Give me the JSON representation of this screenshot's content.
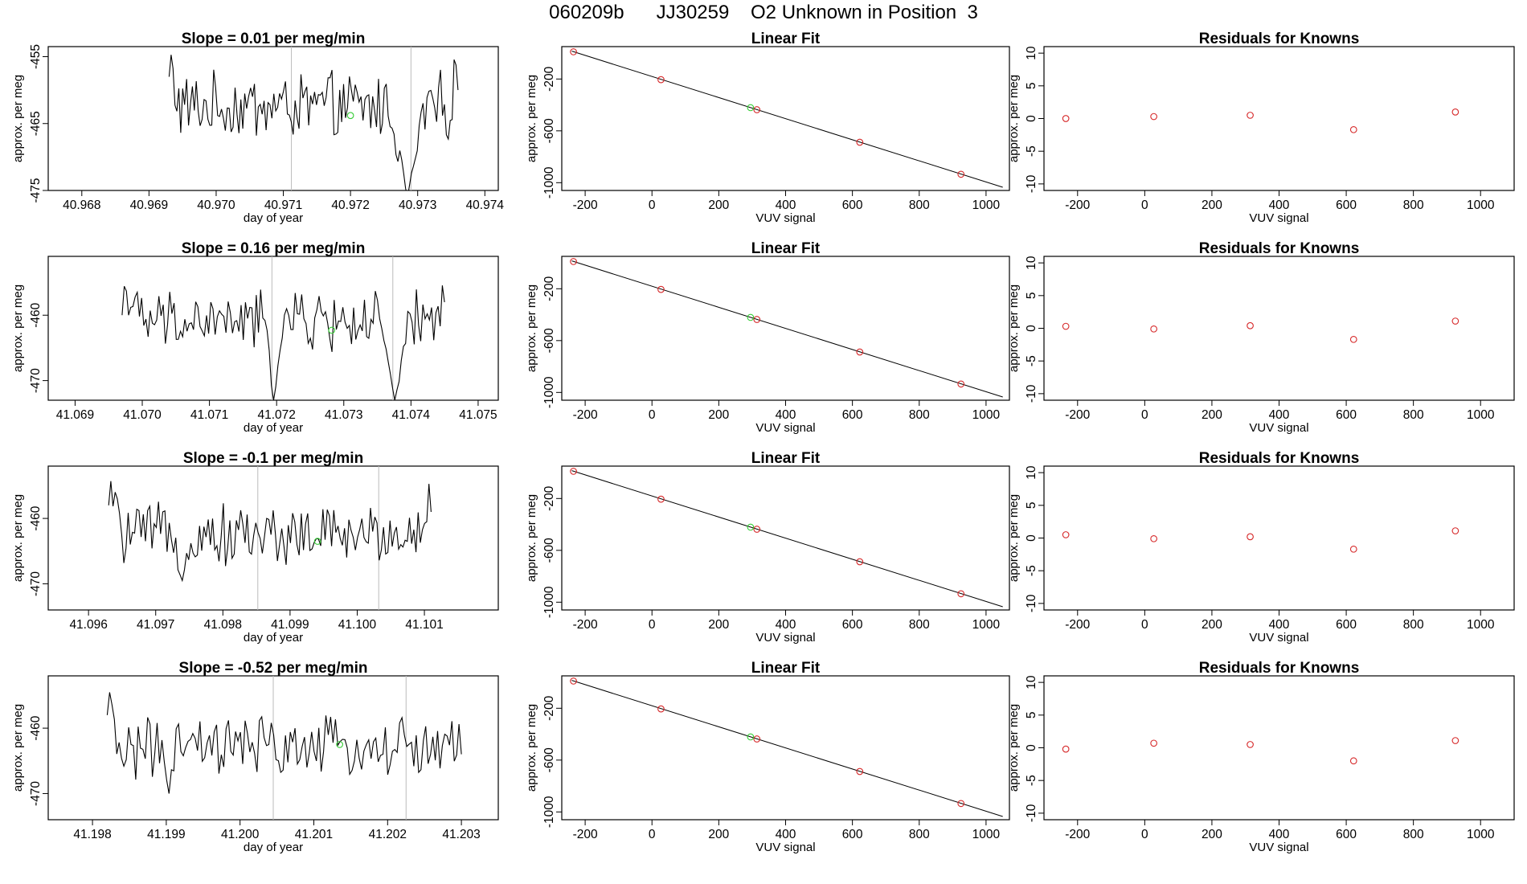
{
  "page_title": "060209b      JJ30259    O2 Unknown in Position  3",
  "colors": {
    "trace": "#000000",
    "known_point": "#d62728",
    "unknown_point": "#33cc33",
    "vline": "#bbbbbb"
  },
  "chart_data": [
    {
      "row": 1,
      "type": "line",
      "title": "Slope =  0.01  per meg/min",
      "xlabel": "day of year",
      "ylabel": "approx. per meg",
      "xlim": [
        40.9675,
        40.9742
      ],
      "ylim": [
        -475,
        -453.5
      ],
      "xticks": [
        40.968,
        40.969,
        40.97,
        40.971,
        40.972,
        40.973,
        40.974
      ],
      "xtick_labels": [
        "40.968",
        "40.969",
        "40.970",
        "40.971",
        "40.972",
        "40.973",
        "40.974"
      ],
      "yticks": [
        -455,
        -465,
        -475
      ],
      "ytick_labels": [
        "-455",
        "-465",
        "-475"
      ],
      "trace_start": 40.9693,
      "trace_end": 40.9736,
      "trace_n": 150,
      "trace_mean": -462.5,
      "trace_amp": 2.6,
      "start_level": -452,
      "end_level": -452,
      "start_len": 6,
      "end_len": 5,
      "dips": [
        {
          "x": 40.97285,
          "y": -476,
          "w": 8
        }
      ],
      "vlines": [
        40.97112,
        40.9729
      ],
      "unknown_point": {
        "x": 40.972,
        "y": -463.8
      }
    },
    {
      "row": 2,
      "type": "line",
      "title": "Slope =  0.16  per meg/min",
      "xlabel": "day of year",
      "ylabel": "approx. per meg",
      "xlim": [
        41.0686,
        41.0753
      ],
      "ylim": [
        -473,
        -451
      ],
      "xticks": [
        41.069,
        41.07,
        41.071,
        41.072,
        41.073,
        41.074,
        41.075
      ],
      "xtick_labels": [
        "41.069",
        "41.070",
        "41.071",
        "41.072",
        "41.073",
        "41.074",
        "41.075"
      ],
      "yticks": [
        -460,
        -470
      ],
      "ytick_labels": [
        "-460",
        "-470"
      ],
      "trace_start": 41.0697,
      "trace_end": 41.0745,
      "trace_n": 150,
      "trace_mean": -461,
      "trace_amp": 2.4,
      "start_level": -454,
      "end_level": -450,
      "start_len": 10,
      "end_len": 4,
      "dips": [
        {
          "x": 41.07195,
          "y": -473,
          "w": 3
        },
        {
          "x": 41.07375,
          "y": -473,
          "w": 6
        }
      ],
      "vlines": [
        41.07193,
        41.07373
      ],
      "unknown_point": {
        "x": 41.07282,
        "y": -462.3
      }
    },
    {
      "row": 3,
      "type": "line",
      "title": "Slope =  -0.1  per meg/min",
      "xlabel": "day of year",
      "ylabel": "approx. per meg",
      "xlim": [
        41.0954,
        41.1021
      ],
      "ylim": [
        -474,
        -452
      ],
      "xticks": [
        41.096,
        41.097,
        41.098,
        41.099,
        41.1,
        41.101
      ],
      "xtick_labels": [
        "41.096",
        "41.097",
        "41.098",
        "41.099",
        "41.100",
        "41.101"
      ],
      "yticks": [
        -460,
        -470
      ],
      "ytick_labels": [
        "-460",
        "-470"
      ],
      "trace_start": 41.0963,
      "trace_end": 41.1011,
      "trace_n": 150,
      "trace_mean": -462.5,
      "trace_amp": 2.4,
      "start_level": -452,
      "end_level": -451,
      "start_len": 8,
      "end_len": 5,
      "dips": [
        {
          "x": 41.09738,
          "y": -469.5,
          "w": 2
        }
      ],
      "vlines": [
        41.09852,
        41.10032
      ],
      "unknown_point": {
        "x": 41.09941,
        "y": -463.5
      }
    },
    {
      "row": 4,
      "type": "line",
      "title": "Slope =  -0.52  per meg/min",
      "xlabel": "day of year",
      "ylabel": "approx. per meg",
      "xlim": [
        41.1974,
        41.2035
      ],
      "ylim": [
        -474,
        -452
      ],
      "xticks": [
        41.198,
        41.199,
        41.2,
        41.201,
        41.202,
        41.203
      ],
      "xtick_labels": [
        "41.198",
        "41.199",
        "41.200",
        "41.201",
        "41.202",
        "41.203"
      ],
      "yticks": [
        -460,
        -470
      ],
      "ytick_labels": [
        "-460",
        "-470"
      ],
      "trace_start": 41.1982,
      "trace_end": 41.203,
      "trace_n": 150,
      "trace_mean": -463,
      "trace_amp": 2.4,
      "start_level": -452,
      "end_level": -456,
      "start_len": 6,
      "end_len": 3,
      "dips": [
        {
          "x": 41.19905,
          "y": -470,
          "w": 2
        }
      ],
      "vlines": [
        41.20045,
        41.20225
      ],
      "unknown_point": {
        "x": 41.20135,
        "y": -462.5
      }
    }
  ],
  "fit_panels": [
    {
      "title": "Linear Fit",
      "xlabel": "VUV signal",
      "ylabel": "approx. per meg",
      "xlim": [
        -270,
        1070
      ],
      "ylim": [
        -1060,
        50
      ],
      "xticks": [
        -200,
        0,
        200,
        400,
        600,
        800,
        1000
      ],
      "xtick_labels": [
        "-200",
        "0",
        "200",
        "400",
        "600",
        "800",
        "1000"
      ],
      "yticks": [
        -200,
        -600,
        -1000
      ],
      "ytick_labels": [
        "-200",
        "-600",
        "-1000"
      ],
      "line": [
        [
          -240,
          15
        ],
        [
          1050,
          -1035
        ]
      ],
      "known_points": [
        {
          "x": -235,
          "y": 10
        },
        {
          "x": 27,
          "y": -205
        },
        {
          "x": 314,
          "y": -437
        },
        {
          "x": 622,
          "y": -688
        },
        {
          "x": 925,
          "y": -935
        }
      ],
      "unknown_point": {
        "x": 295,
        "y": -421
      }
    },
    {
      "title": "Linear Fit",
      "xlabel": "VUV signal",
      "ylabel": "approx. per meg",
      "xlim": [
        -270,
        1070
      ],
      "ylim": [
        -1060,
        50
      ],
      "xticks": [
        -200,
        0,
        200,
        400,
        600,
        800,
        1000
      ],
      "xtick_labels": [
        "-200",
        "0",
        "200",
        "400",
        "600",
        "800",
        "1000"
      ],
      "yticks": [
        -200,
        -600,
        -1000
      ],
      "ytick_labels": [
        "-200",
        "-600",
        "-1000"
      ],
      "line": [
        [
          -240,
          15
        ],
        [
          1050,
          -1035
        ]
      ],
      "known_points": [
        {
          "x": -235,
          "y": 10
        },
        {
          "x": 27,
          "y": -205
        },
        {
          "x": 314,
          "y": -437
        },
        {
          "x": 622,
          "y": -688
        },
        {
          "x": 925,
          "y": -935
        }
      ],
      "unknown_point": {
        "x": 295,
        "y": -421
      }
    },
    {
      "title": "Linear Fit",
      "xlabel": "VUV signal",
      "ylabel": "approx. per meg",
      "xlim": [
        -270,
        1070
      ],
      "ylim": [
        -1060,
        50
      ],
      "xticks": [
        -200,
        0,
        200,
        400,
        600,
        800,
        1000
      ],
      "xtick_labels": [
        "-200",
        "0",
        "200",
        "400",
        "600",
        "800",
        "1000"
      ],
      "yticks": [
        -200,
        -600,
        -1000
      ],
      "ytick_labels": [
        "-200",
        "-600",
        "-1000"
      ],
      "line": [
        [
          -240,
          15
        ],
        [
          1050,
          -1035
        ]
      ],
      "known_points": [
        {
          "x": -235,
          "y": 10
        },
        {
          "x": 27,
          "y": -205
        },
        {
          "x": 314,
          "y": -437
        },
        {
          "x": 622,
          "y": -688
        },
        {
          "x": 925,
          "y": -935
        }
      ],
      "unknown_point": {
        "x": 295,
        "y": -421
      }
    },
    {
      "title": "Linear Fit",
      "xlabel": "VUV signal",
      "ylabel": "approx. per meg",
      "xlim": [
        -270,
        1070
      ],
      "ylim": [
        -1060,
        50
      ],
      "xticks": [
        -200,
        0,
        200,
        400,
        600,
        800,
        1000
      ],
      "xtick_labels": [
        "-200",
        "0",
        "200",
        "400",
        "600",
        "800",
        "1000"
      ],
      "yticks": [
        -200,
        -600,
        -1000
      ],
      "ytick_labels": [
        "-200",
        "-600",
        "-1000"
      ],
      "line": [
        [
          -240,
          15
        ],
        [
          1050,
          -1035
        ]
      ],
      "known_points": [
        {
          "x": -235,
          "y": 10
        },
        {
          "x": 27,
          "y": -205
        },
        {
          "x": 314,
          "y": -437
        },
        {
          "x": 622,
          "y": -688
        },
        {
          "x": 925,
          "y": -935
        }
      ],
      "unknown_point": {
        "x": 295,
        "y": -421
      }
    }
  ],
  "residual_panels": [
    {
      "title": "Residuals for Knowns",
      "xlabel": "VUV signal",
      "ylabel": "approx. per meg",
      "xlim": [
        -300,
        1100
      ],
      "ylim": [
        -11,
        11
      ],
      "xticks": [
        -200,
        0,
        200,
        400,
        600,
        800,
        1000
      ],
      "xtick_labels": [
        "-200",
        "0",
        "200",
        "400",
        "600",
        "800",
        "1000"
      ],
      "yticks": [
        10,
        5,
        0,
        -5,
        -10
      ],
      "ytick_labels": [
        "10",
        "5",
        "0",
        "-5",
        "-10"
      ],
      "points": [
        {
          "x": -235,
          "y": 0.0
        },
        {
          "x": 27,
          "y": 0.3
        },
        {
          "x": 314,
          "y": 0.5
        },
        {
          "x": 622,
          "y": -1.7
        },
        {
          "x": 925,
          "y": 1.0
        }
      ]
    },
    {
      "title": "Residuals for Knowns",
      "xlabel": "VUV signal",
      "ylabel": "approx. per meg",
      "xlim": [
        -300,
        1100
      ],
      "ylim": [
        -11,
        11
      ],
      "xticks": [
        -200,
        0,
        200,
        400,
        600,
        800,
        1000
      ],
      "xtick_labels": [
        "-200",
        "0",
        "200",
        "400",
        "600",
        "800",
        "1000"
      ],
      "yticks": [
        10,
        5,
        0,
        -5,
        -10
      ],
      "ytick_labels": [
        "10",
        "5",
        "0",
        "-5",
        "-10"
      ],
      "points": [
        {
          "x": -235,
          "y": 0.3
        },
        {
          "x": 27,
          "y": -0.1
        },
        {
          "x": 314,
          "y": 0.4
        },
        {
          "x": 622,
          "y": -1.7
        },
        {
          "x": 925,
          "y": 1.1
        }
      ]
    },
    {
      "title": "Residuals for Knowns",
      "xlabel": "VUV signal",
      "ylabel": "approx. per meg",
      "xlim": [
        -300,
        1100
      ],
      "ylim": [
        -11,
        11
      ],
      "xticks": [
        -200,
        0,
        200,
        400,
        600,
        800,
        1000
      ],
      "xtick_labels": [
        "-200",
        "0",
        "200",
        "400",
        "600",
        "800",
        "1000"
      ],
      "yticks": [
        10,
        5,
        0,
        -5,
        -10
      ],
      "ytick_labels": [
        "10",
        "5",
        "0",
        "-5",
        "-10"
      ],
      "points": [
        {
          "x": -235,
          "y": 0.5
        },
        {
          "x": 27,
          "y": -0.1
        },
        {
          "x": 314,
          "y": 0.2
        },
        {
          "x": 622,
          "y": -1.7
        },
        {
          "x": 925,
          "y": 1.1
        }
      ]
    },
    {
      "title": "Residuals for Knowns",
      "xlabel": "VUV signal",
      "ylabel": "approx. per meg",
      "xlim": [
        -300,
        1100
      ],
      "ylim": [
        -11,
        11
      ],
      "xticks": [
        -200,
        0,
        200,
        400,
        600,
        800,
        1000
      ],
      "xtick_labels": [
        "-200",
        "0",
        "200",
        "400",
        "600",
        "800",
        "1000"
      ],
      "yticks": [
        10,
        5,
        0,
        -5,
        -10
      ],
      "ytick_labels": [
        "10",
        "5",
        "0",
        "-5",
        "-10"
      ],
      "points": [
        {
          "x": -235,
          "y": -0.2
        },
        {
          "x": 27,
          "y": 0.7
        },
        {
          "x": 314,
          "y": 0.5
        },
        {
          "x": 622,
          "y": -2.0
        },
        {
          "x": 925,
          "y": 1.1
        }
      ]
    }
  ]
}
